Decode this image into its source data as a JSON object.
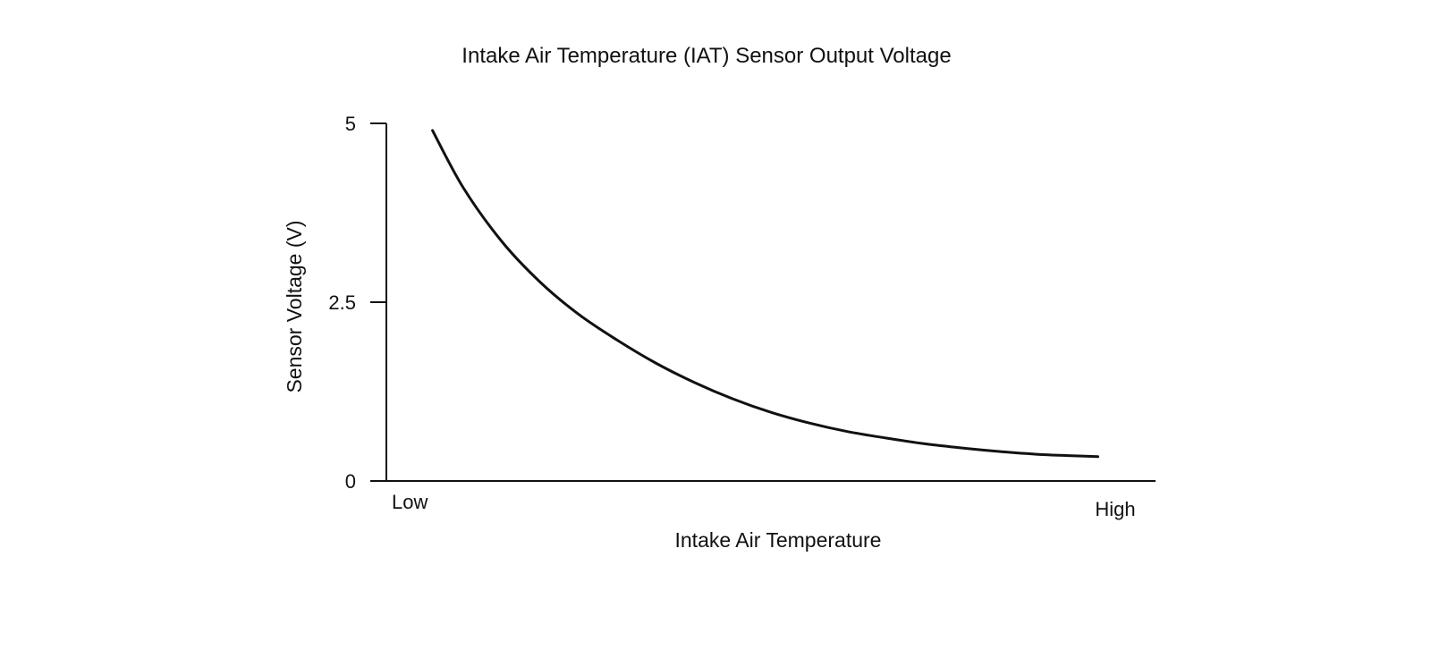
{
  "chart_data": {
    "type": "line",
    "title": "Intake Air Temperature (IAT) Sensor Output Voltage",
    "xlabel": "Intake Air Temperature",
    "ylabel": "Sensor Voltage (V)",
    "x_tick_labels": [
      "Low",
      "High"
    ],
    "y_ticks": [
      {
        "value": 0,
        "label": "0"
      },
      {
        "value": 2.5,
        "label": "2.5"
      },
      {
        "value": 5,
        "label": "5"
      }
    ],
    "ylim": [
      0,
      5
    ],
    "xlim": [
      0,
      1
    ],
    "grid": false,
    "legend": "none",
    "series": [
      {
        "color": "#111111",
        "x": [
          0.06,
          0.1,
          0.15,
          0.2,
          0.25,
          0.3,
          0.35,
          0.4,
          0.45,
          0.5,
          0.55,
          0.6,
          0.65,
          0.7,
          0.75,
          0.8,
          0.85,
          0.9,
          0.925
        ],
        "y": [
          4.9,
          4.1,
          3.35,
          2.78,
          2.33,
          1.97,
          1.65,
          1.38,
          1.15,
          0.96,
          0.81,
          0.69,
          0.6,
          0.52,
          0.46,
          0.41,
          0.37,
          0.35,
          0.34
        ]
      }
    ]
  }
}
